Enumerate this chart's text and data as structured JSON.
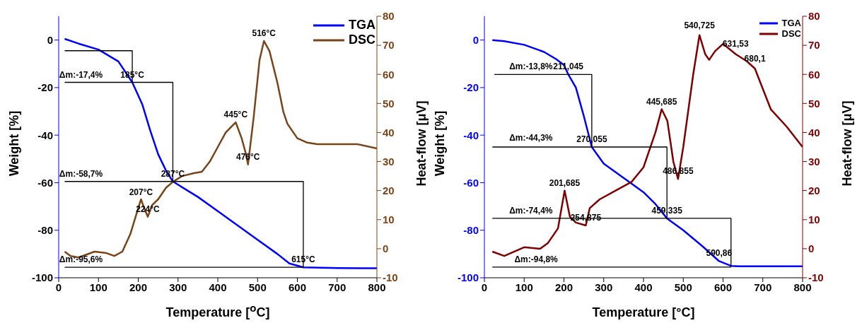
{
  "chart_data": [
    {
      "type": "line",
      "xlabel": "Temperature [$^{o}$C]",
      "ylabel": "Weight [%]",
      "y2label": "Heat-flow [μV]",
      "xlim": [
        0,
        800
      ],
      "xticks": [
        0,
        100,
        200,
        300,
        400,
        500,
        600,
        700,
        800
      ],
      "ylim": [
        -100,
        10
      ],
      "yticks": [
        -100,
        -80,
        -60,
        -40,
        -20,
        0
      ],
      "y2lim": [
        -10,
        80
      ],
      "y2ticks": [
        -10,
        0,
        10,
        20,
        30,
        40,
        50,
        60,
        70,
        80
      ],
      "legend": "top right",
      "series": [
        {
          "name": "TGA",
          "color": "#0000ff",
          "x": [
            15,
            50,
            100,
            150,
            185,
            210,
            230,
            250,
            270,
            287,
            350,
            400,
            450,
            500,
            550,
            580,
            615,
            700,
            800
          ],
          "values": [
            0.5,
            -1.5,
            -4,
            -9,
            -17.8,
            -27,
            -38,
            -48,
            -55,
            -59.5,
            -66,
            -72,
            -78,
            -84,
            -90,
            -94,
            -95.6,
            -95.9,
            -96
          ]
        },
        {
          "name": "DSC",
          "color": "#7a4419",
          "axis": "y2",
          "x": [
            15,
            30,
            50,
            90,
            120,
            140,
            160,
            180,
            200,
            207,
            215,
            224,
            235,
            250,
            270,
            287,
            310,
            340,
            360,
            380,
            400,
            420,
            445,
            460,
            470,
            476,
            490,
            505,
            516,
            530,
            550,
            565,
            575,
            600,
            625,
            650,
            700,
            750,
            800
          ],
          "values": [
            -1,
            -2.5,
            -3,
            -1,
            -1.5,
            -2.5,
            -1,
            5,
            14,
            17,
            14,
            11,
            15,
            17,
            21,
            23,
            25,
            26,
            26.5,
            30,
            35,
            40,
            43.5,
            38,
            33,
            29,
            45,
            65,
            71.5,
            68,
            57,
            47,
            43,
            38,
            36.5,
            36,
            36,
            36,
            34.5
          ]
        },
        {
          "color": "#000000",
          "x": [
            15,
            185,
            185
          ],
          "values": [
            -4.5,
            -4.5,
            -17.8
          ]
        },
        {
          "color": "#000000",
          "x": [
            15,
            287,
            287
          ],
          "values": [
            -17.8,
            -17.8,
            -59.5
          ]
        },
        {
          "color": "#000000",
          "x": [
            15,
            615,
            615
          ],
          "values": [
            -59.5,
            -59.5,
            -95.6
          ]
        },
        {
          "color": "#000000",
          "x": [
            15,
            615
          ],
          "values": [
            -95.6,
            -95.6
          ]
        }
      ],
      "annotations": [
        {
          "text": "Δm:-17,4%",
          "x": 56,
          "y": -17.8
        },
        {
          "text": "Δm:-58,7%",
          "x": 56,
          "y": -59.5
        },
        {
          "text": "Δm:-95,6%",
          "x": 56,
          "y": -95.6
        },
        {
          "text": "185°C",
          "x": 185,
          "y": -17.8
        },
        {
          "text": "287°C",
          "x": 287,
          "y": -59.5
        },
        {
          "text": "615°C",
          "x": 615,
          "y": -95.6
        },
        {
          "text": "207°C",
          "x": 207,
          "y": -67.2
        },
        {
          "text": "224°C",
          "x": 224,
          "y": -74.3
        },
        {
          "text": "445°C",
          "x": 445,
          "y": -34.6
        },
        {
          "text": "476°C",
          "x": 476,
          "y": -52.3
        },
        {
          "text": "516°C",
          "x": 516,
          "y": -0.4
        }
      ]
    },
    {
      "type": "line",
      "xlabel": "Temperature [°C]",
      "ylabel": "Weight [%]",
      "y2label": "Heat-flow [μV]",
      "xlim": [
        0,
        800
      ],
      "xticks": [
        0,
        100,
        200,
        300,
        400,
        500,
        600,
        700,
        800
      ],
      "ylim": [
        -100,
        10
      ],
      "yticks": [
        -100,
        -80,
        -60,
        -40,
        -20,
        0
      ],
      "y2lim": [
        -10,
        80
      ],
      "y2ticks": [
        -10,
        0,
        10,
        20,
        30,
        40,
        50,
        60,
        70,
        80
      ],
      "legend": "top right",
      "series": [
        {
          "name": "TGA",
          "color": "#0000ff",
          "x": [
            20,
            50,
            100,
            150,
            180,
            200,
            211,
            230,
            250,
            270,
            300,
            350,
            400,
            430,
            459,
            500,
            550,
            590,
            620,
            640,
            800
          ],
          "values": [
            0,
            -0.5,
            -2,
            -5,
            -8,
            -10.5,
            -14.5,
            -20,
            -32,
            -45,
            -52,
            -58,
            -64,
            -69,
            -75,
            -80,
            -87,
            -93,
            -95,
            -95.2,
            -95.2
          ]
        },
        {
          "name": "DSC",
          "color": "#7f0000",
          "axis": "y2",
          "x": [
            20,
            50,
            100,
            140,
            160,
            185,
            201.7,
            215,
            230,
            254.9,
            265,
            290,
            330,
            370,
            400,
            430,
            445.7,
            460,
            475,
            486.9,
            500,
            525,
            540.7,
            555,
            565,
            580,
            600,
            631.5,
            660,
            680.1,
            700,
            720,
            760,
            800
          ],
          "values": [
            -1,
            -2.5,
            0.5,
            0,
            2,
            7,
            20,
            11,
            9,
            8,
            14,
            17,
            20,
            23,
            28,
            40,
            48,
            44,
            30,
            24,
            35,
            60,
            73.5,
            67,
            65,
            68,
            70.5,
            67,
            64.5,
            62,
            55,
            48,
            42,
            35
          ]
        },
        {
          "color": "#000000",
          "x": [
            25,
            270,
            270
          ],
          "values": [
            -14.5,
            -14.5,
            -45
          ]
        },
        {
          "color": "#000000",
          "x": [
            20,
            459,
            459
          ],
          "values": [
            -45,
            -45,
            -75
          ]
        },
        {
          "color": "#000000",
          "x": [
            20,
            620,
            620
          ],
          "values": [
            -75,
            -75,
            -95.5
          ]
        },
        {
          "color": "#000000",
          "x": [
            20,
            620
          ],
          "values": [
            -95.5,
            -95.5
          ]
        }
      ],
      "annotations": [
        {
          "text": "Δm:-13,8%",
          "x": 117,
          "y": -14.5
        },
        {
          "text": "Δm:-44,3%",
          "x": 117,
          "y": -44.5
        },
        {
          "text": "Δm:-74,4%",
          "x": 117,
          "y": -75
        },
        {
          "text": "Δm:-94,8%",
          "x": 130,
          "y": -95.5
        },
        {
          "text": "211,045",
          "x": 211,
          "y": -14.5
        },
        {
          "text": "270,055",
          "x": 270,
          "y": -45
        },
        {
          "text": "459,335",
          "x": 459,
          "y": -75
        },
        {
          "text": "590,86",
          "x": 590,
          "y": -93
        },
        {
          "text": "201,685",
          "x": 201.7,
          "y": -63.3
        },
        {
          "text": "254,875",
          "x": 254.9,
          "y": -78
        },
        {
          "text": "445,685",
          "x": 445.7,
          "y": -29.1
        },
        {
          "text": "486,855",
          "x": 486.9,
          "y": -58.4
        },
        {
          "text": "540,725",
          "x": 540.7,
          "y": 2.9
        },
        {
          "text": "631,53",
          "x": 631.5,
          "y": -4.9
        },
        {
          "text": "680,1",
          "x": 680.1,
          "y": -11
        }
      ]
    }
  ]
}
